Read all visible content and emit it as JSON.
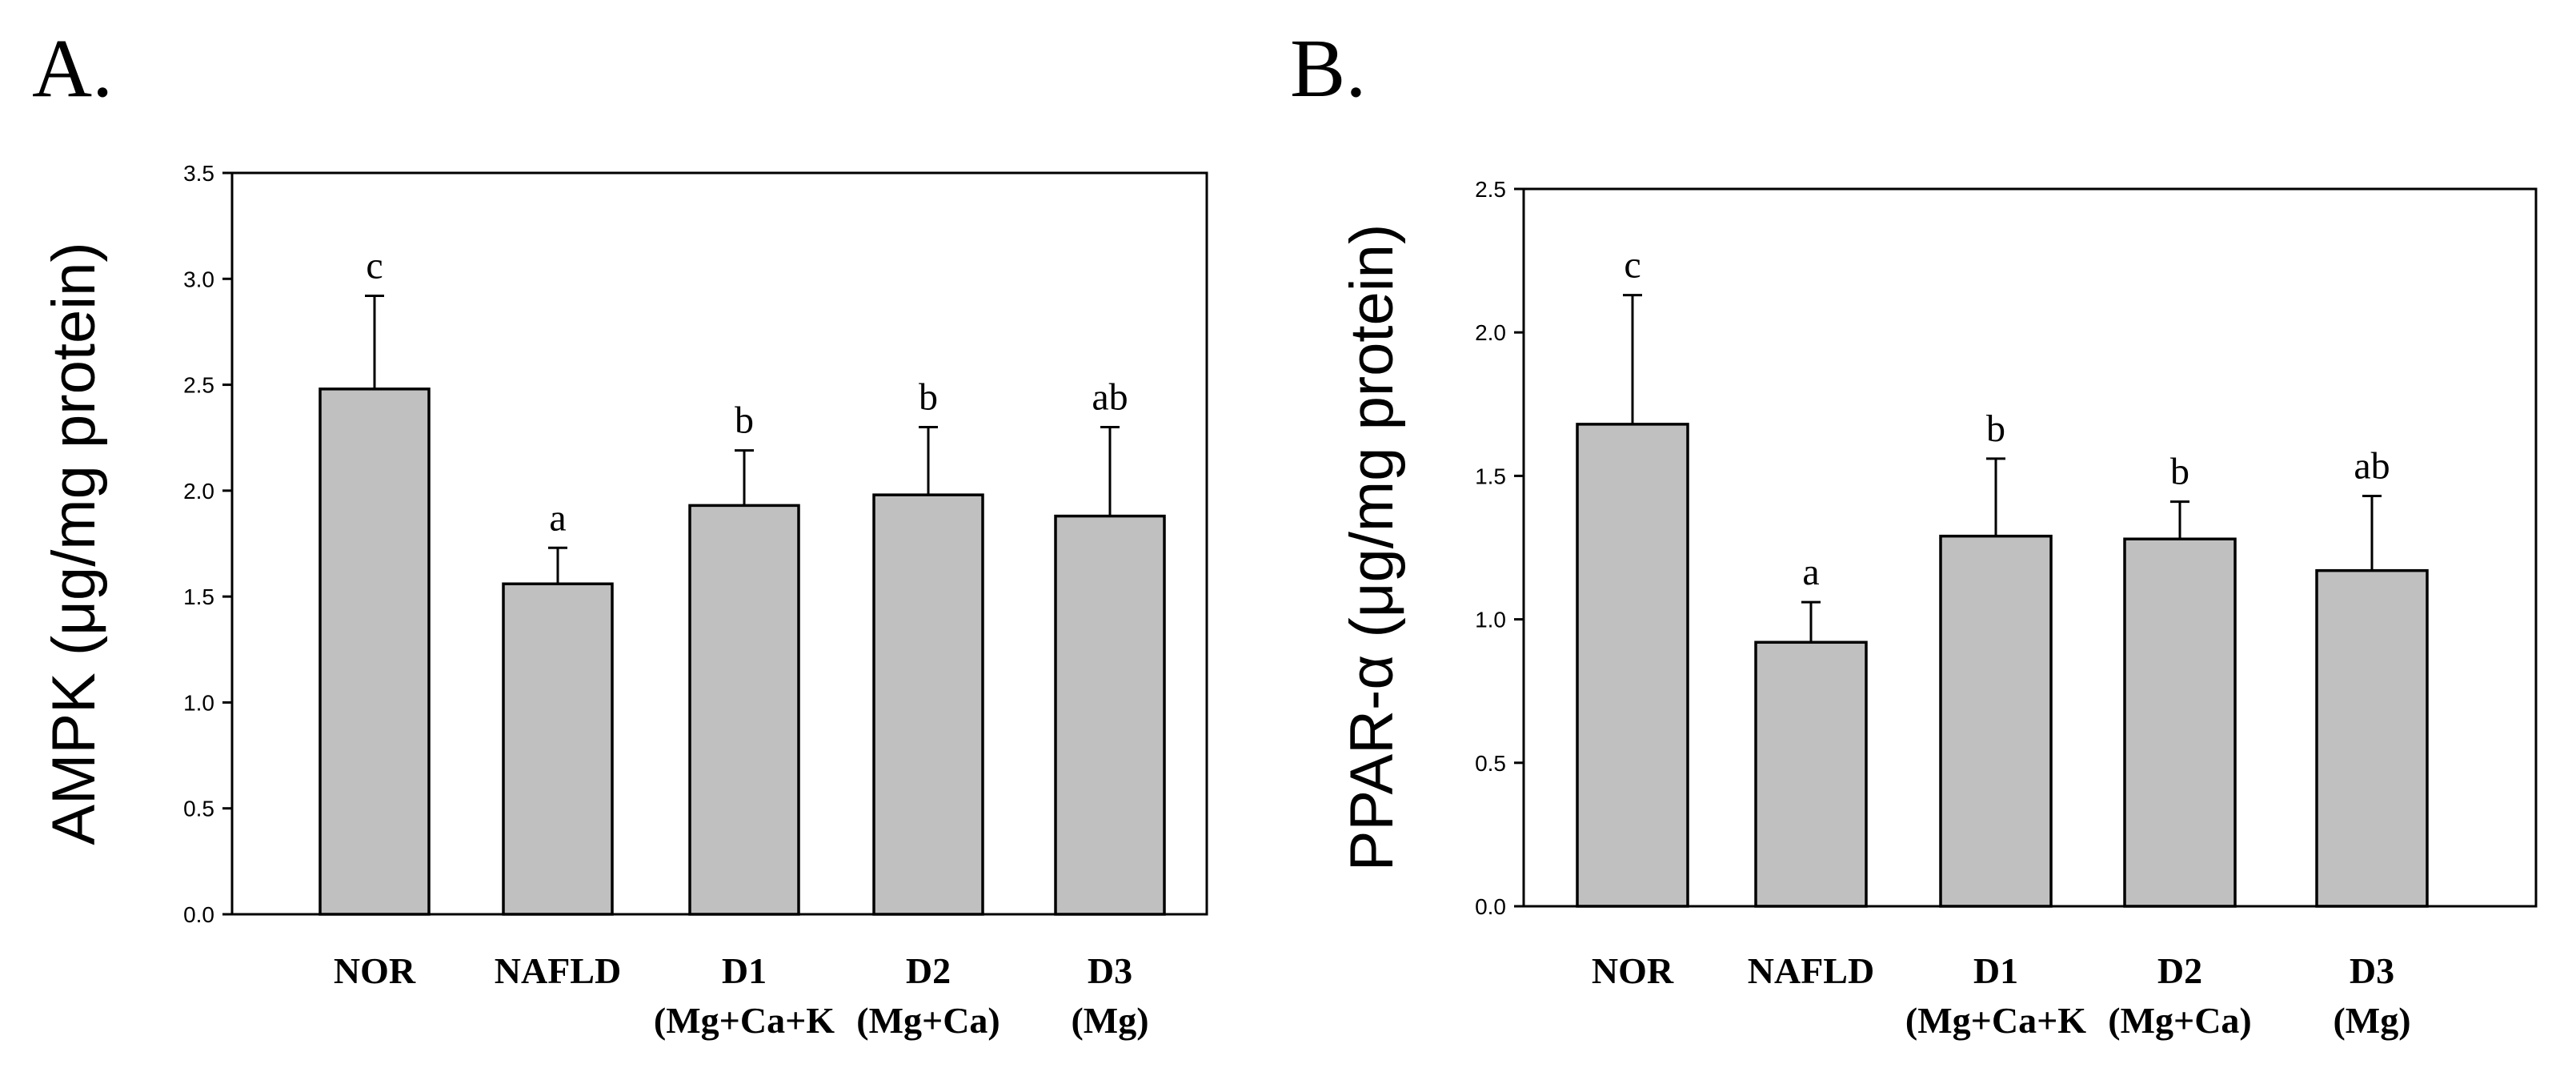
{
  "chart_data": [
    {
      "type": "bar",
      "panel": "A.",
      "title": "",
      "xlabel": "",
      "ylabel": "AMPK (μg/mg protein)",
      "ylim": [
        0,
        3.5
      ],
      "yticks": [
        "0.0",
        "0.5",
        "1.0",
        "1.5",
        "2.0",
        "2.5",
        "3.0",
        "3.5"
      ],
      "categories": [
        "NOR",
        "NAFLD",
        "D1",
        "D2",
        "D3"
      ],
      "sublabels": [
        "",
        "",
        "(Mg+Ca+K",
        "(Mg+Ca)",
        "(Mg)"
      ],
      "values": [
        2.48,
        1.56,
        1.93,
        1.98,
        1.88
      ],
      "errors": [
        0.44,
        0.17,
        0.26,
        0.32,
        0.42
      ],
      "significance": [
        "c",
        "a",
        "b",
        "b",
        "ab"
      ],
      "bar_color": "#c0c0c0",
      "grid": false
    },
    {
      "type": "bar",
      "panel": "B.",
      "title": "",
      "xlabel": "",
      "ylabel": "PPAR-α (μg/mg protein)",
      "ylim": [
        0,
        2.5
      ],
      "yticks": [
        "0.0",
        "0.5",
        "1.0",
        "1.5",
        "2.0",
        "2.5"
      ],
      "categories": [
        "NOR",
        "NAFLD",
        "D1",
        "D2",
        "D3"
      ],
      "sublabels": [
        "",
        "",
        "(Mg+Ca+K",
        "(Mg+Ca)",
        "(Mg)"
      ],
      "values": [
        1.68,
        0.92,
        1.29,
        1.28,
        1.17
      ],
      "errors": [
        0.45,
        0.14,
        0.27,
        0.13,
        0.26
      ],
      "significance": [
        "c",
        "a",
        "b",
        "b",
        "ab"
      ],
      "bar_color": "#c0c0c0",
      "grid": false
    }
  ]
}
